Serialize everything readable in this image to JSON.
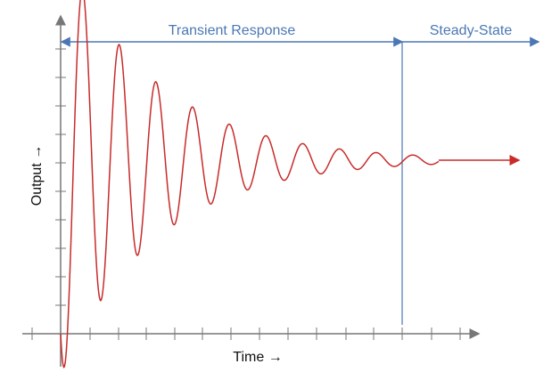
{
  "chart_data": {
    "type": "line",
    "title": "",
    "xlabel": "Time →",
    "ylabel": "Output →",
    "grid": false,
    "legend": "none",
    "annotations": [
      {
        "label": "Transient Response"
      },
      {
        "label": "Steady-State"
      }
    ],
    "series": [
      {
        "name": "",
        "x": [
          0,
          0.2,
          0.4,
          0.6,
          0.8,
          1.0,
          1.2,
          1.4,
          1.6,
          1.8,
          2.0
        ],
        "y": [
          0.0,
          1.6,
          0.2,
          1.3,
          0.5,
          1.15,
          0.8,
          1.07,
          0.92,
          1.02,
          1.0
        ]
      }
    ],
    "steady_state_level": 1.0
  },
  "colors": {
    "axis": "#777777",
    "annotation": "#4b78b4",
    "response": "#c92b2b",
    "divider": "#4b78b4",
    "text": "#111111"
  }
}
